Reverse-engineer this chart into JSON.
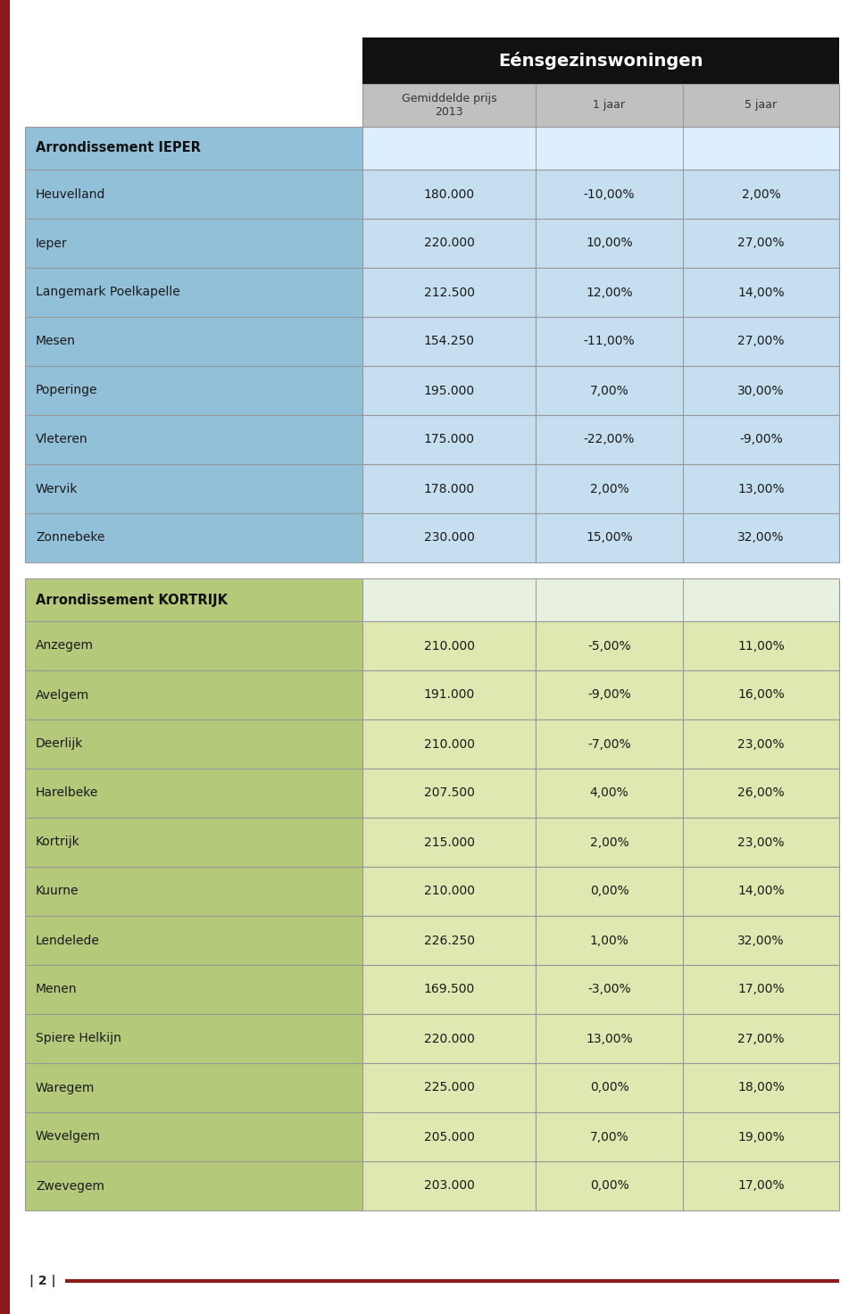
{
  "title": "Eénsgezinswoningen",
  "col_headers": [
    "Gemiddelde prijs\n2013",
    "1 jaar",
    "5 jaar"
  ],
  "sections": [
    {
      "section_label": "Arrondissement IEPER",
      "section_bg": "#92c0d8",
      "row_bg": "#c5dff0",
      "rows": [
        [
          "Heuvelland",
          "180.000",
          "-10,00%",
          "2,00%"
        ],
        [
          "Ieper",
          "220.000",
          "10,00%",
          "27,00%"
        ],
        [
          "Langemark Poelkapelle",
          "212.500",
          "12,00%",
          "14,00%"
        ],
        [
          "Mesen",
          "154.250",
          "-11,00%",
          "27,00%"
        ],
        [
          "Poperinge",
          "195.000",
          "7,00%",
          "30,00%"
        ],
        [
          "Vleteren",
          "175.000",
          "-22,00%",
          "-9,00%"
        ],
        [
          "Wervik",
          "178.000",
          "2,00%",
          "13,00%"
        ],
        [
          "Zonnebeke",
          "230.000",
          "15,00%",
          "32,00%"
        ]
      ]
    },
    {
      "section_label": "Arrondissement KORTRIJK",
      "section_bg": "#b5c97a",
      "row_bg": "#dfe8b0",
      "rows": [
        [
          "Anzegem",
          "210.000",
          "-5,00%",
          "11,00%"
        ],
        [
          "Avelgem",
          "191.000",
          "-9,00%",
          "16,00%"
        ],
        [
          "Deerlijk",
          "210.000",
          "-7,00%",
          "23,00%"
        ],
        [
          "Harelbeke",
          "207.500",
          "4,00%",
          "26,00%"
        ],
        [
          "Kortrijk",
          "215.000",
          "2,00%",
          "23,00%"
        ],
        [
          "Kuurne",
          "210.000",
          "0,00%",
          "14,00%"
        ],
        [
          "Lendelede",
          "226.250",
          "1,00%",
          "32,00%"
        ],
        [
          "Menen",
          "169.500",
          "-3,00%",
          "17,00%"
        ],
        [
          "Spiere Helkijn",
          "220.000",
          "13,00%",
          "27,00%"
        ],
        [
          "Waregem",
          "225.000",
          "0,00%",
          "18,00%"
        ],
        [
          "Wevelgem",
          "205.000",
          "7,00%",
          "19,00%"
        ],
        [
          "Zwevegem",
          "203.000",
          "0,00%",
          "17,00%"
        ]
      ]
    }
  ],
  "page_number": "| 2 |",
  "left_bar_color": "#8b1a1a",
  "header_bg": "#111111",
  "header_text_color": "#ffffff",
  "subheader_bg": "#c0c0c0",
  "subheader_text_color": "#333333",
  "border_color": "#999999",
  "data_cell_bg": "#f0f4e8",
  "page_bg": "#ffffff",
  "section_header_right_bg": "#e8f0e0",
  "section1_header_right_bg": "#ddeeff"
}
